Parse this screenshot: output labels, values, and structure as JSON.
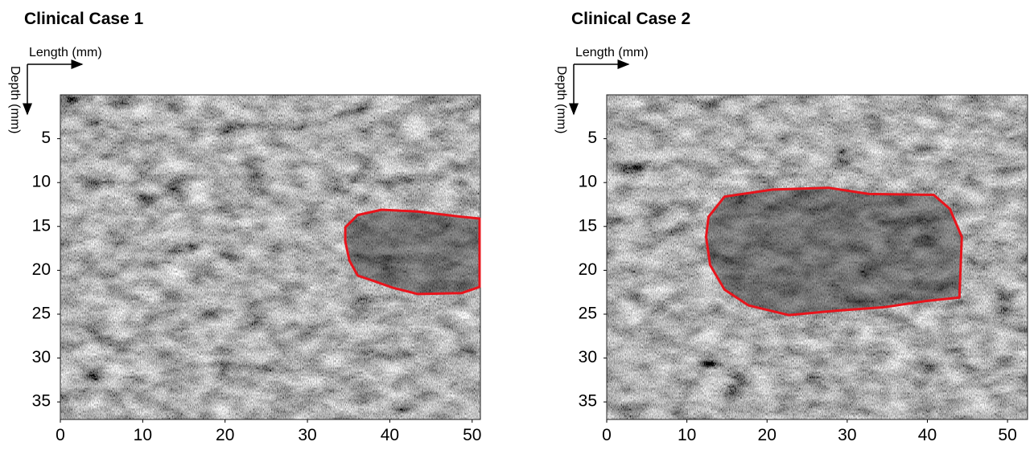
{
  "chart_data": [
    {
      "type": "image",
      "title": "Clinical Case 1",
      "xlabel": "Length (mm)",
      "ylabel": "Depth (mm)",
      "xlim": [
        0,
        51
      ],
      "xticks": [
        0,
        10,
        20,
        30,
        40,
        50
      ],
      "ylim": [
        0,
        37
      ],
      "yticks": [
        5,
        10,
        15,
        20,
        25,
        30,
        35
      ],
      "y_inverted": true,
      "contour": {
        "color": "#e8141c",
        "x": [
          34.6,
          36.1,
          39.0,
          43.4,
          48.7,
          50.9,
          50.9,
          48.7,
          43.4,
          40.4,
          38.0,
          36.1,
          35.1,
          34.6
        ],
        "y": [
          15.1,
          13.7,
          13.1,
          13.3,
          13.9,
          14.1,
          21.9,
          22.6,
          22.7,
          22.0,
          21.2,
          20.6,
          18.9,
          16.7
        ]
      }
    },
    {
      "type": "image",
      "title": "Clinical Case 2",
      "xlabel": "Length (mm)",
      "ylabel": "Depth (mm)",
      "xlim": [
        0,
        52.5
      ],
      "xticks": [
        0,
        10,
        20,
        30,
        40,
        50
      ],
      "ylim": [
        0,
        37
      ],
      "yticks": [
        5,
        10,
        15,
        20,
        25,
        30,
        35
      ],
      "y_inverted": true,
      "contour": {
        "color": "#e8141c",
        "x": [
          12.7,
          14.7,
          20.7,
          27.7,
          32.7,
          40.8,
          42.8,
          44.3,
          44.0,
          39.8,
          34.7,
          28.7,
          22.7,
          17.7,
          14.7,
          12.9,
          12.4
        ],
        "y": [
          13.9,
          11.6,
          10.8,
          10.6,
          11.3,
          11.4,
          13.0,
          16.2,
          23.1,
          23.5,
          24.2,
          24.6,
          25.1,
          24.0,
          22.2,
          19.4,
          16.2
        ]
      }
    }
  ]
}
